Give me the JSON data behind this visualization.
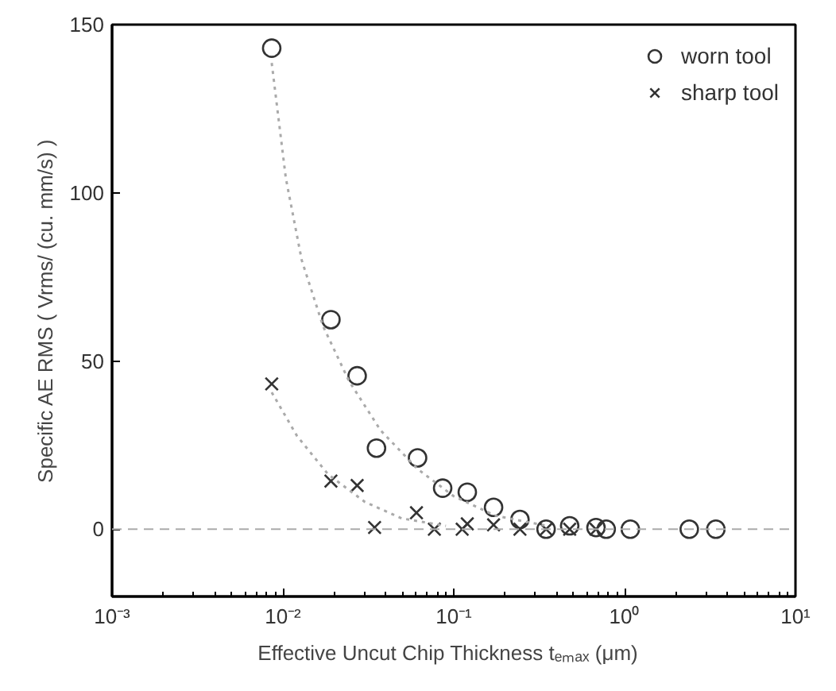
{
  "chart_data": {
    "type": "scatter",
    "xlabel": "Effective Uncut Chip Thickness  tₑₘₐₓ  (μm)",
    "ylabel": "Specific AE RMS ( Vrms/ (cu. mm/s) )",
    "log": "x",
    "xlim": [
      0.001,
      10
    ],
    "ylim": [
      -20,
      150
    ],
    "xticks": [
      {
        "value": 0.001,
        "label": "10⁻³"
      },
      {
        "value": 0.01,
        "label": "10⁻²"
      },
      {
        "value": 0.1,
        "label": "10⁻¹"
      },
      {
        "value": 1,
        "label": "10⁰"
      },
      {
        "value": 10,
        "label": "10¹"
      }
    ],
    "yticks": [
      0,
      50,
      100,
      150
    ],
    "grid": false,
    "legend": "top right",
    "ref_lines": [
      {
        "axis": "y",
        "value": 0,
        "color": "#aaaaaa",
        "line_style": "dashed"
      }
    ],
    "series": [
      {
        "name": "worn tool",
        "color": "#333333",
        "marker": "circle",
        "x": [
          0.0086,
          0.0191,
          0.0272,
          0.0353,
          0.0614,
          0.0861,
          0.12,
          0.171,
          0.244,
          0.347,
          0.477,
          0.68,
          0.78,
          1.08,
          2.39,
          3.42
        ],
        "values": [
          143,
          62.3,
          45.6,
          24.1,
          21.2,
          12.2,
          11,
          6.5,
          2.9,
          0,
          1,
          0.5,
          0,
          0,
          0,
          0
        ]
      },
      {
        "name": "sharp tool",
        "color": "#333333",
        "marker": "cross",
        "x": [
          0.0086,
          0.0191,
          0.0272,
          0.0344,
          0.0605,
          0.077,
          0.112,
          0.12,
          0.171,
          0.244,
          0.347,
          0.477,
          0.68
        ],
        "values": [
          43.2,
          14.3,
          13,
          0.5,
          4.9,
          0,
          0,
          1.6,
          1.3,
          0,
          0,
          0,
          0
        ]
      },
      {
        "type": "line",
        "color": "#aaaaaa",
        "line_style": "dotted",
        "x": [
          0.0086,
          0.0104,
          0.0129,
          0.0172,
          0.0244,
          0.0373,
          0.0614,
          0.1,
          0.176,
          0.35
        ],
        "values": [
          138.6,
          104.4,
          79.9,
          60.3,
          44,
          29.4,
          17.9,
          9.8,
          4,
          1
        ]
      },
      {
        "type": "line",
        "color": "#aaaaaa",
        "line_style": "dotted",
        "x": [
          0.0086,
          0.0121,
          0.0184,
          0.0302,
          0.0497,
          0.09
        ],
        "values": [
          40.7,
          27.7,
          16.3,
          8.1,
          3.2,
          1
        ]
      }
    ]
  }
}
